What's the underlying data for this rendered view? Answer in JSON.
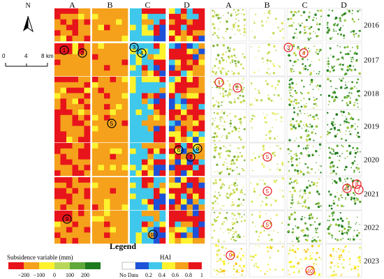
{
  "left_columns": [
    "A",
    "B",
    "C",
    "D"
  ],
  "right_columns": [
    "A",
    "B",
    "C",
    "D"
  ],
  "years": [
    "2016",
    "2017",
    "2018",
    "2019",
    "2020",
    "2021",
    "2022",
    "2023"
  ],
  "north_arrow": "N",
  "scale_bar": {
    "ticks": [
      "0",
      "4",
      "8"
    ],
    "unit": "km"
  },
  "legend_title": "Legend",
  "subsidence_legend": {
    "title": "Subsidence variable (mm)",
    "labels": [
      "−200",
      "−100",
      "0",
      "100",
      "200"
    ],
    "colors": [
      "#e8141b",
      "#f5a11b",
      "#fdf22d",
      "#b8d75a",
      "#5fa83a",
      "#1f7a1f"
    ]
  },
  "hai_legend": {
    "title": "HAI",
    "labels": [
      "No Data",
      "0.2",
      "0.4",
      "0.6",
      "0.8",
      "1"
    ],
    "colors": [
      "#ffffff",
      "#1d52d8",
      "#3fc8ec",
      "#fdf22d",
      "#f5a11b",
      "#e8141b"
    ]
  },
  "hai_markers": [
    {
      "number": "1",
      "row": 1,
      "col": 0
    },
    {
      "number": "2",
      "row": 1,
      "col": 0
    },
    {
      "number": "3",
      "row": 1,
      "col": 2
    },
    {
      "number": "4",
      "row": 1,
      "col": 2
    },
    {
      "number": "5",
      "row": 3,
      "col": 1
    },
    {
      "number": "6",
      "row": 4,
      "col": 3
    },
    {
      "number": "8",
      "row": 4,
      "col": 3
    },
    {
      "number": "7",
      "row": 4,
      "col": 3
    },
    {
      "number": "9",
      "row": 6,
      "col": 0
    },
    {
      "number": "10",
      "row": 6,
      "col": 2
    }
  ],
  "subsidence_markers": [
    {
      "number": "3",
      "row": 1,
      "col": 2
    },
    {
      "number": "4",
      "row": 1,
      "col": 2
    },
    {
      "number": "1",
      "row": 2,
      "col": 0
    },
    {
      "number": "2",
      "row": 2,
      "col": 0
    },
    {
      "number": "5",
      "row": 4,
      "col": 1
    },
    {
      "number": "5",
      "row": 5,
      "col": 1
    },
    {
      "number": "8",
      "row": 5,
      "col": 3
    },
    {
      "number": "6",
      "row": 5,
      "col": 3
    },
    {
      "number": "7",
      "row": 5,
      "col": 3
    },
    {
      "number": "5",
      "row": 6,
      "col": 1
    },
    {
      "number": "9",
      "row": 7,
      "col": 0
    },
    {
      "number": "10",
      "row": 7,
      "col": 2
    }
  ]
}
